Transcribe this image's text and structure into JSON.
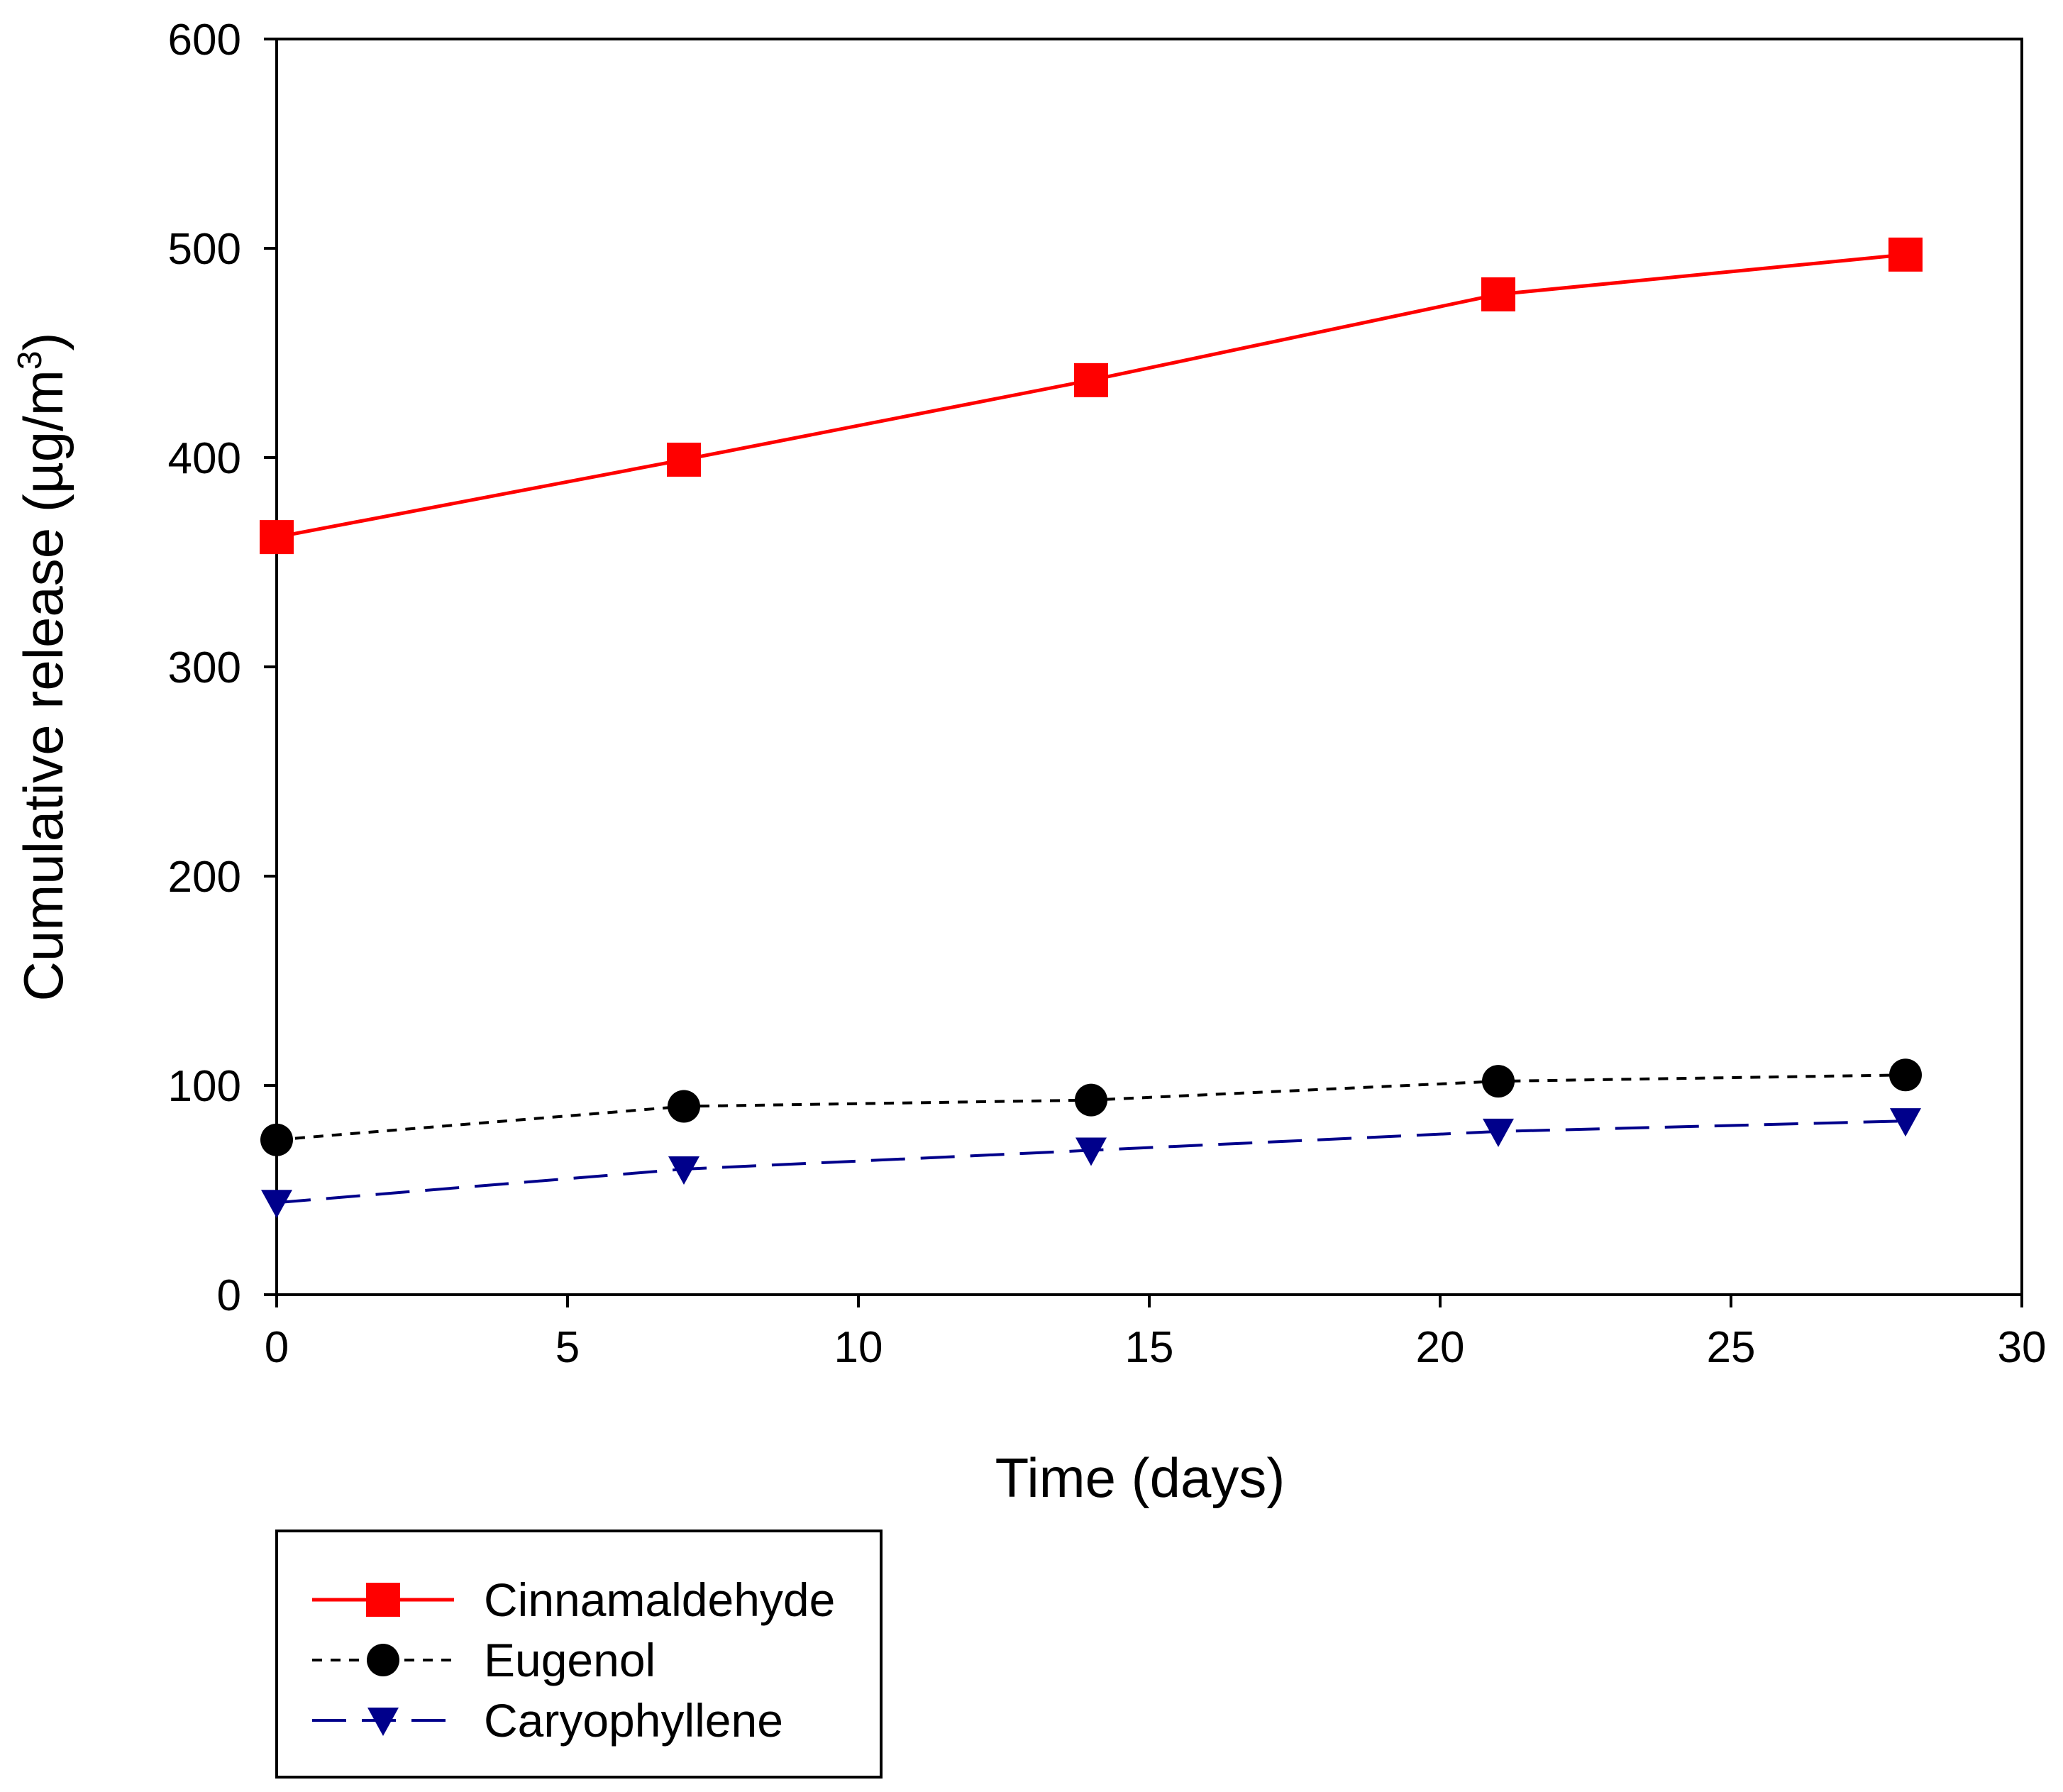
{
  "chart_data": {
    "type": "line",
    "title": "",
    "xlabel": "Time (days)",
    "ylabel": "Cumulative release (µg/m",
    "ylabel_sup": "3",
    "ylabel_close": ")",
    "xlim": [
      0,
      30
    ],
    "ylim": [
      0,
      600
    ],
    "xticks": [
      0,
      5,
      10,
      15,
      20,
      25,
      30
    ],
    "yticks": [
      0,
      100,
      200,
      300,
      400,
      500,
      600
    ],
    "grid": false,
    "legend_position": "bottom-left, below plot",
    "series": [
      {
        "name": "Cinnamaldehyde",
        "marker": "square",
        "line": "solid",
        "color": "#ff0000",
        "x": [
          0,
          7,
          14,
          21,
          28
        ],
        "y": [
          362,
          399,
          437,
          478,
          497
        ]
      },
      {
        "name": "Eugenol",
        "marker": "circle",
        "line": "dotted",
        "color": "#000000",
        "x": [
          0,
          7,
          14,
          21,
          28
        ],
        "y": [
          74,
          90,
          93,
          102,
          105
        ]
      },
      {
        "name": "Caryophyllene",
        "marker": "triangle-down",
        "line": "dashed",
        "color": "#00008b",
        "x": [
          0,
          7,
          14,
          21,
          28
        ],
        "y": [
          44,
          60,
          69,
          78,
          83
        ]
      }
    ]
  }
}
